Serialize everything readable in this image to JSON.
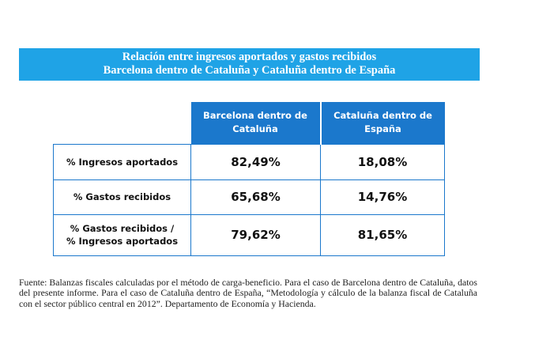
{
  "title": {
    "line1": "Relación entre ingresos aportados y gastos recibidos",
    "line2": "Barcelona dentro de Cataluña y Cataluña dentro de España"
  },
  "table": {
    "columns": [
      {
        "line1": "Barcelona dentro de",
        "line2": "Cataluña"
      },
      {
        "line1": "Cataluña dentro de",
        "line2": "España"
      }
    ],
    "rows": [
      {
        "label": "% Ingresos aportados",
        "values": [
          "82,49%",
          "18,08%"
        ]
      },
      {
        "label": "% Gastos recibidos",
        "values": [
          "65,68%",
          "14,76%"
        ]
      },
      {
        "label_line1": "% Gastos recibidos /",
        "label_line2": "% Ingresos aportados",
        "values": [
          "79,62%",
          "81,65%"
        ]
      }
    ]
  },
  "source": "Fuente: Balanzas fiscales calculadas por el método de carga-beneficio. Para el caso de Barcelona dentro de Cataluña, datos del presente informe. Para el caso de Cataluña dentro de España, “Metodología y cálculo de la balanza fiscal de Cataluña con el sector público central en 2012”. Departamento de Economía y Hacienda.",
  "colors": {
    "title_bg": "#1fa3e6",
    "header_bg": "#1b78cc",
    "border": "#1b78cc"
  }
}
